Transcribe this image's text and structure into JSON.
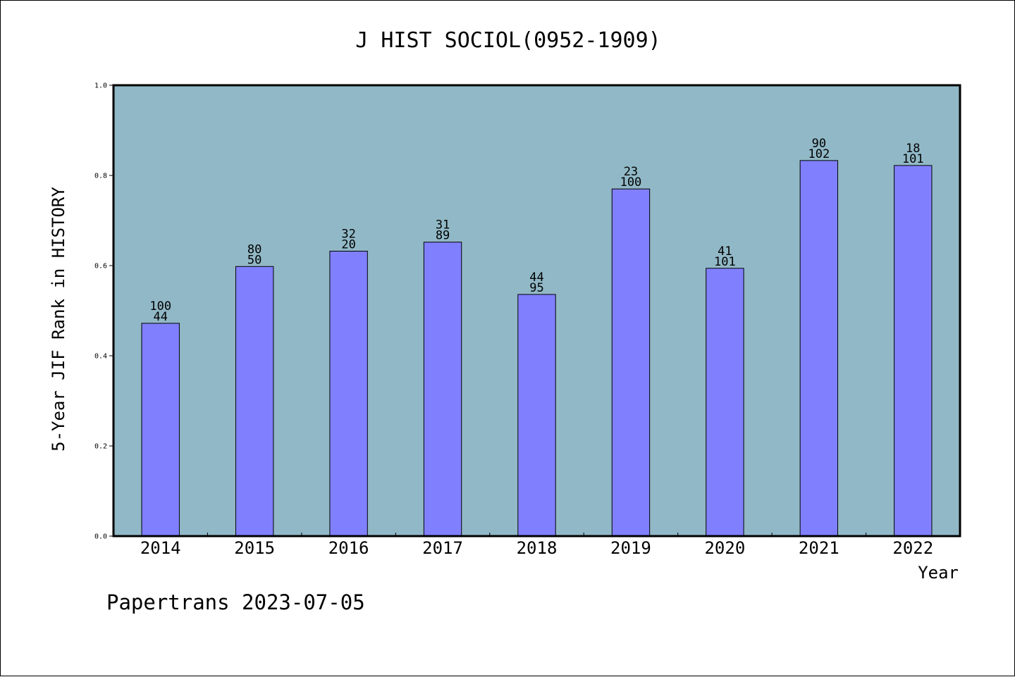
{
  "chart_data": {
    "type": "bar",
    "title": "J HIST SOCIOL(0952-1909)",
    "xlabel": "Year",
    "ylabel": "5-Year JIF Rank in HISTORY",
    "ylim": [
      0,
      1.0
    ],
    "yticks": [
      "0.0",
      "0.2",
      "0.4",
      "0.6",
      "0.8",
      "1.0"
    ],
    "categories": [
      "2014",
      "2015",
      "2016",
      "2017",
      "2018",
      "2019",
      "2020",
      "2021",
      "2022"
    ],
    "values": [
      0.472,
      0.598,
      0.632,
      0.652,
      0.536,
      0.77,
      0.594,
      0.833,
      0.822
    ],
    "annotations": [
      [
        "100",
        "44"
      ],
      [
        "80",
        "50"
      ],
      [
        "32",
        "20"
      ],
      [
        "31",
        "89"
      ],
      [
        "44",
        "95"
      ],
      [
        "23",
        "100"
      ],
      [
        "41",
        "101"
      ],
      [
        "90",
        "102"
      ],
      [
        "18",
        "101"
      ]
    ],
    "grid": false,
    "colors": {
      "plot_background": "#91b8c6",
      "bar_fill": "#8080ff",
      "bar_stroke": "#000000"
    }
  },
  "footer": {
    "text": "Papertrans 2023-07-05"
  }
}
